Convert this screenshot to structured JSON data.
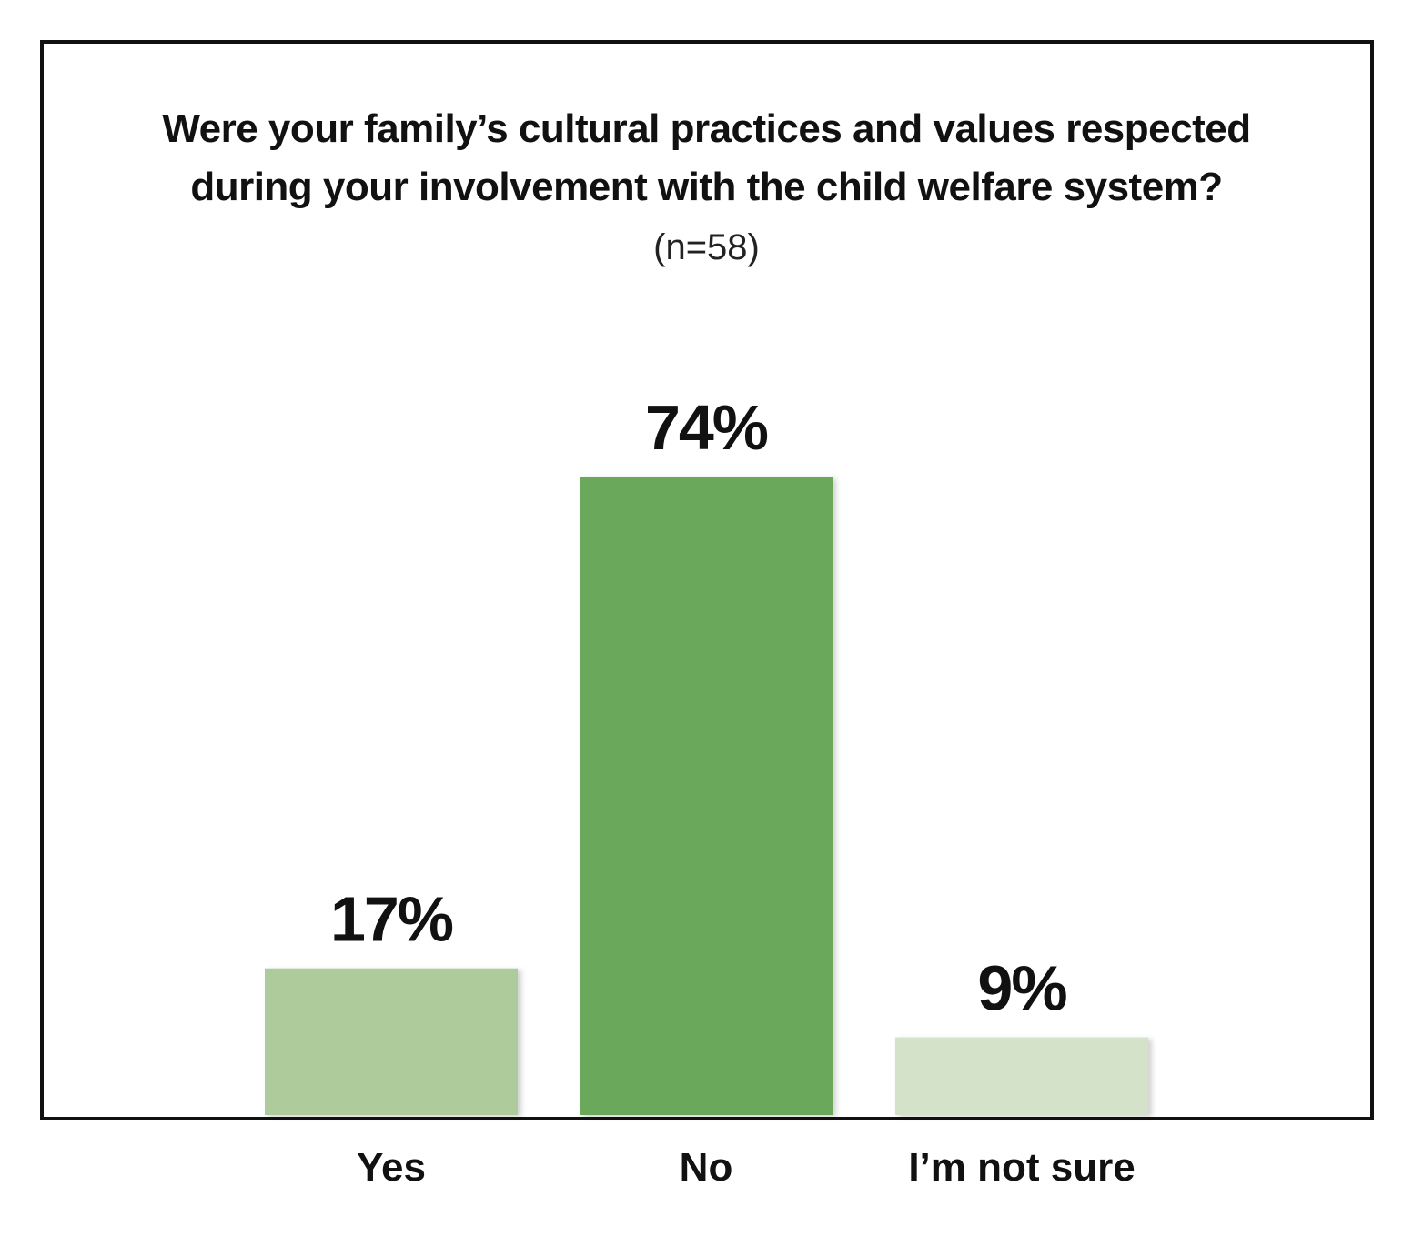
{
  "chart_data": {
    "type": "bar",
    "title_lines": [
      "Were your family’s cultural practices and values respected",
      "during your involvement with the child welfare system?"
    ],
    "subtitle": "(n=58)",
    "categories": [
      "Yes",
      "No",
      "I’m not sure"
    ],
    "values": [
      17,
      74,
      9
    ],
    "value_labels": [
      "17%",
      "74%",
      "9%"
    ],
    "colors": [
      "#aecb9c",
      "#6aa95c",
      "#d3e2c9"
    ],
    "unit": "%",
    "ylim": [
      0,
      100
    ],
    "grid": false,
    "legend": "none"
  }
}
